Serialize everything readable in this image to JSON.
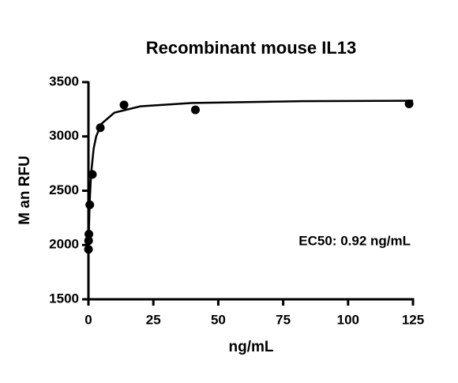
{
  "chart_data": {
    "type": "scatter",
    "title": "Recombinant mouse IL13",
    "x_label": "ng/mL",
    "y_label": "M  an RFU",
    "annotation": "EC50: 0.92 ng/mL",
    "x": [
      0.019,
      0.056,
      0.17,
      0.51,
      1.52,
      4.57,
      13.7,
      41.2,
      123.5
    ],
    "values": [
      1960,
      2040,
      2100,
      2370,
      2650,
      3080,
      3290,
      3245,
      3300
    ],
    "fit": {
      "x": [
        0,
        0.25,
        0.5,
        1,
        2,
        3,
        5,
        10,
        20,
        40,
        80,
        125
      ],
      "values": [
        1900,
        2208,
        2407,
        2650,
        2887,
        3002,
        3116,
        3219,
        3277,
        3308,
        3324,
        3329
      ]
    },
    "color": "#000000",
    "xlim": [
      0,
      125
    ],
    "xticks": [
      0,
      25,
      50,
      75,
      100,
      125
    ],
    "ylim": [
      1500,
      3500
    ],
    "yticks": [
      1500,
      2000,
      2500,
      3000,
      3500
    ],
    "grid": false
  }
}
